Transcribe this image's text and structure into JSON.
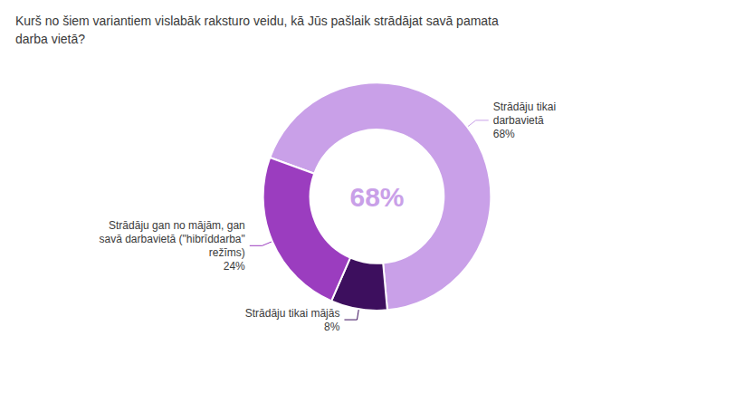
{
  "chart_data": {
    "type": "pie",
    "title": "Kurš no šiem variantiem vislabāk raksturo veidu, kā Jūs pašlaik strādājat savā pamata\ndarba vietā?",
    "categories": [
      "Strādāju tikai\ndarbavietā",
      "Strādāju tikai mājās",
      "Strādāju gan no mājām, gan\nsavā darbavietā (\"hibrīddarba\"\nrežīms)"
    ],
    "values": [
      68,
      8,
      24
    ],
    "value_labels": [
      "68%",
      "8%",
      "24%"
    ],
    "colors": [
      "#c9a0e8",
      "#3d0f5e",
      "#9b3dbf"
    ],
    "data_labels": true,
    "annotations": [
      "68%"
    ]
  }
}
